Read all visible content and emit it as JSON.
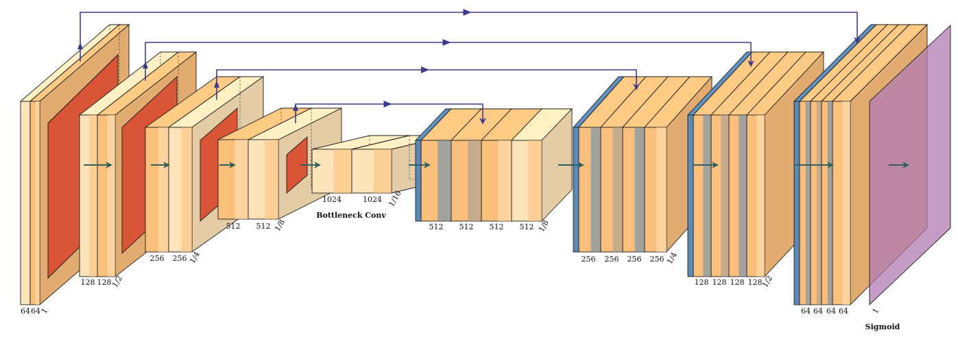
{
  "diagram": {
    "bottleneck_caption": "Bottleneck Conv",
    "output_caption": "Sigmoid",
    "stages": [
      {
        "id": "enc1",
        "channels": [
          "64",
          "64"
        ],
        "scale": "1"
      },
      {
        "id": "enc2",
        "channels": [
          "128",
          "128"
        ],
        "scale": "1/2"
      },
      {
        "id": "enc3",
        "channels": [
          "256",
          "256"
        ],
        "scale": "1/4"
      },
      {
        "id": "enc4",
        "channels": [
          "512",
          "512"
        ],
        "scale": "1/8"
      },
      {
        "id": "bottleneck",
        "channels": [
          "1024",
          "1024"
        ],
        "scale": "1/16"
      },
      {
        "id": "dec4",
        "channels": [
          "512",
          "512",
          "512",
          "512"
        ],
        "scale": "1/8"
      },
      {
        "id": "dec3",
        "channels": [
          "256",
          "256",
          "256",
          "256"
        ],
        "scale": "1/4"
      },
      {
        "id": "dec2",
        "channels": [
          "128",
          "128",
          "128",
          "128"
        ],
        "scale": "1/2"
      },
      {
        "id": "dec1",
        "channels": [
          "64",
          "64",
          "64",
          "64"
        ],
        "scale": ""
      },
      {
        "id": "output",
        "channels": [],
        "scale": "1"
      }
    ]
  },
  "colors": {
    "conv_light": "#fde3b8",
    "conv_mid": "#fbbf7c",
    "pool": "#d95536",
    "upconv": "#5b8ab8",
    "concat": "#9a9a9a",
    "sigmoid": "#b27bb3",
    "skip_arrow": "#3a3a8c",
    "flow_arrow": "#2e5f5f",
    "outline": "#1a1a1a"
  }
}
